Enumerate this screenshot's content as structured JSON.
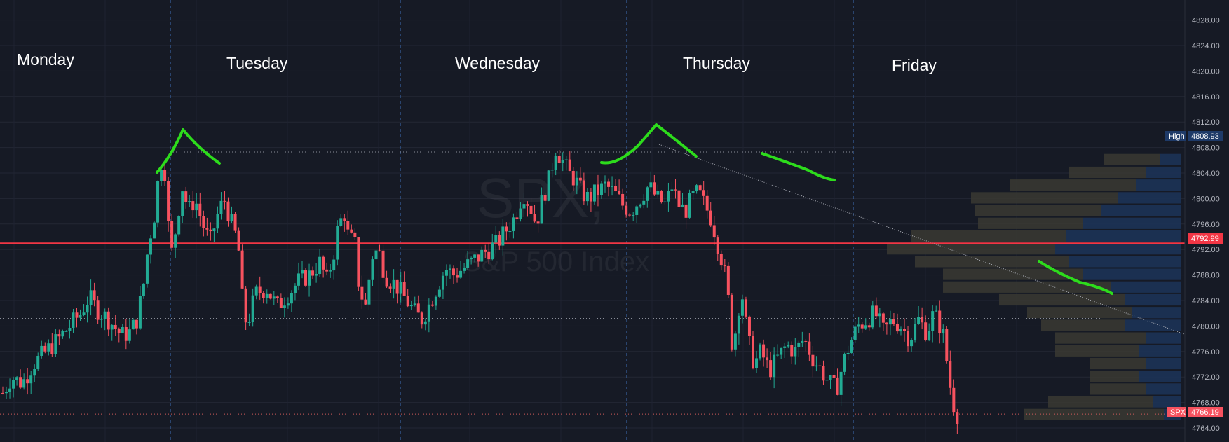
{
  "chart_data": {
    "type": "candlestick",
    "watermark": {
      "symbol": "SPX,",
      "name": "S&P 500 Index"
    },
    "days": [
      "Monday",
      "Tuesday",
      "Wednesday",
      "Thursday",
      "Friday"
    ],
    "y_axis": {
      "ylim": [
        4763,
        4829
      ],
      "ticks": [
        "4828.00",
        "4824.00",
        "4820.00",
        "4816.00",
        "4812.00",
        "4808.00",
        "4804.00",
        "4800.00",
        "4796.00",
        "4792.00",
        "4788.00",
        "4784.00",
        "4780.00",
        "4776.00",
        "4772.00",
        "4768.00",
        "4764.00"
      ]
    },
    "badges": {
      "high": {
        "label": "High",
        "value": "4808.93"
      },
      "line": {
        "value": "4792.99"
      },
      "last": {
        "label": "SPX",
        "value": "4766.19"
      }
    },
    "levels": {
      "red_line": 4792.99,
      "high_line": 4807.3,
      "mid_line": 4781.2,
      "last_line": 4766.19
    },
    "trendline": {
      "from": [
        0.5,
        4808.5
      ],
      "to": [
        0.98,
        4778.5
      ]
    },
    "session_path": [
      [
        0.0,
        4769.5
      ],
      [
        0.008,
        4772
      ],
      [
        0.018,
        4771
      ],
      [
        0.028,
        4774
      ],
      [
        0.04,
        4776
      ],
      [
        0.052,
        4778
      ],
      [
        0.062,
        4780
      ],
      [
        0.072,
        4782
      ],
      [
        0.08,
        4784.5
      ],
      [
        0.088,
        4782.5
      ],
      [
        0.098,
        4781
      ],
      [
        0.11,
        4778.5
      ],
      [
        0.118,
        4779
      ],
      [
        0.124,
        4781
      ],
      [
        0.13,
        4786
      ],
      [
        0.135,
        4793
      ],
      [
        0.14,
        4797
      ],
      [
        0.146,
        4806
      ],
      [
        0.15,
        4804.5
      ],
      [
        0.152,
        4798
      ],
      [
        0.156,
        4791
      ],
      [
        0.16,
        4795
      ],
      [
        0.166,
        4802
      ],
      [
        0.172,
        4798
      ],
      [
        0.178,
        4800
      ],
      [
        0.185,
        4796
      ],
      [
        0.192,
        4793
      ],
      [
        0.198,
        4797
      ],
      [
        0.205,
        4800
      ],
      [
        0.212,
        4796
      ],
      [
        0.218,
        4793
      ],
      [
        0.222,
        4784
      ],
      [
        0.226,
        4780
      ],
      [
        0.234,
        4785
      ],
      [
        0.244,
        4786
      ],
      [
        0.254,
        4783
      ],
      [
        0.264,
        4785
      ],
      [
        0.274,
        4787
      ],
      [
        0.284,
        4788
      ],
      [
        0.294,
        4790
      ],
      [
        0.3,
        4787
      ],
      [
        0.306,
        4791
      ],
      [
        0.31,
        4795
      ],
      [
        0.316,
        4798
      ],
      [
        0.32,
        4794
      ],
      [
        0.326,
        4793
      ],
      [
        0.33,
        4786
      ],
      [
        0.336,
        4783
      ],
      [
        0.342,
        4791
      ],
      [
        0.348,
        4792
      ],
      [
        0.354,
        4788
      ],
      [
        0.36,
        4787
      ],
      [
        0.366,
        4786
      ],
      [
        0.374,
        4784
      ],
      [
        0.382,
        4782
      ],
      [
        0.388,
        4781
      ],
      [
        0.394,
        4783
      ],
      [
        0.402,
        4786
      ],
      [
        0.41,
        4789
      ],
      [
        0.418,
        4788
      ],
      [
        0.426,
        4789
      ],
      [
        0.434,
        4790
      ],
      [
        0.442,
        4791
      ],
      [
        0.45,
        4792
      ],
      [
        0.458,
        4793
      ],
      [
        0.466,
        4795
      ],
      [
        0.474,
        4797
      ],
      [
        0.482,
        4801
      ],
      [
        0.488,
        4799
      ],
      [
        0.494,
        4796
      ],
      [
        0.5,
        4800
      ],
      [
        0.506,
        4803
      ],
      [
        0.512,
        4808
      ],
      [
        0.518,
        4806
      ],
      [
        0.524,
        4804
      ],
      [
        0.53,
        4803
      ],
      [
        0.536,
        4801
      ],
      [
        0.542,
        4800
      ],
      [
        0.55,
        4801
      ],
      [
        0.558,
        4802
      ],
      [
        0.566,
        4801
      ],
      [
        0.574,
        4799
      ],
      [
        0.582,
        4798
      ],
      [
        0.59,
        4800
      ],
      [
        0.598,
        4802
      ],
      [
        0.606,
        4800
      ],
      [
        0.614,
        4799
      ],
      [
        0.62,
        4802
      ],
      [
        0.626,
        4799
      ],
      [
        0.632,
        4798
      ],
      [
        0.638,
        4800
      ],
      [
        0.644,
        4801
      ],
      [
        0.65,
        4799
      ],
      [
        0.656,
        4797
      ],
      [
        0.662,
        4793
      ],
      [
        0.668,
        4789
      ],
      [
        0.672,
        4784
      ],
      [
        0.676,
        4776
      ],
      [
        0.684,
        4786
      ],
      [
        0.69,
        4778
      ],
      [
        0.696,
        4774
      ],
      [
        0.702,
        4776
      ],
      [
        0.71,
        4773
      ],
      [
        0.718,
        4775
      ],
      [
        0.726,
        4777
      ],
      [
        0.734,
        4776
      ],
      [
        0.742,
        4778
      ],
      [
        0.75,
        4775
      ],
      [
        0.758,
        4773
      ],
      [
        0.766,
        4771
      ],
      [
        0.772,
        4770
      ],
      [
        0.778,
        4774
      ],
      [
        0.784,
        4777
      ],
      [
        0.792,
        4780
      ],
      [
        0.8,
        4781
      ],
      [
        0.808,
        4782
      ],
      [
        0.816,
        4779
      ],
      [
        0.824,
        4781
      ],
      [
        0.832,
        4780
      ],
      [
        0.84,
        4778
      ],
      [
        0.848,
        4781
      ],
      [
        0.856,
        4779
      ],
      [
        0.862,
        4782
      ],
      [
        0.868,
        4780
      ],
      [
        0.872,
        4778
      ],
      [
        0.876,
        4772
      ],
      [
        0.88,
        4768
      ],
      [
        0.884,
        4766.19
      ]
    ],
    "volume_profile": [
      [
        4806,
        0.06,
        0.16
      ],
      [
        4804,
        0.1,
        0.22
      ],
      [
        4802,
        0.13,
        0.36
      ],
      [
        4800,
        0.18,
        0.42
      ],
      [
        4798,
        0.23,
        0.36
      ],
      [
        4796,
        0.28,
        0.3
      ],
      [
        4794,
        0.33,
        0.44
      ],
      [
        4792,
        0.36,
        0.48
      ],
      [
        4790,
        0.32,
        0.44
      ],
      [
        4788,
        0.28,
        0.4
      ],
      [
        4786,
        0.2,
        0.48
      ],
      [
        4784,
        0.16,
        0.36
      ],
      [
        4782,
        0.14,
        0.3
      ],
      [
        4780,
        0.16,
        0.24
      ],
      [
        4778,
        0.1,
        0.26
      ],
      [
        4776,
        0.12,
        0.24
      ],
      [
        4774,
        0.1,
        0.16
      ],
      [
        4772,
        0.12,
        0.14
      ],
      [
        4770,
        0.1,
        0.16
      ],
      [
        4768,
        0.08,
        0.3
      ],
      [
        4766,
        0.05,
        0.4
      ]
    ],
    "annotations": "green hand-drawn arcs marking highs"
  }
}
